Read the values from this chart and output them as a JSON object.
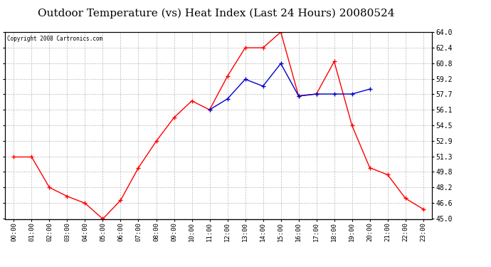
{
  "title": "Outdoor Temperature (vs) Heat Index (Last 24 Hours) 20080524",
  "copyright": "Copyright 2008 Cartronics.com",
  "hours": [
    "00:00",
    "01:00",
    "02:00",
    "03:00",
    "04:00",
    "05:00",
    "06:00",
    "07:00",
    "08:00",
    "09:00",
    "10:00",
    "11:00",
    "12:00",
    "13:00",
    "14:00",
    "15:00",
    "16:00",
    "17:00",
    "18:00",
    "19:00",
    "20:00",
    "21:00",
    "22:00",
    "23:00"
  ],
  "temp": [
    51.3,
    51.3,
    48.2,
    47.3,
    46.6,
    45.0,
    46.9,
    50.2,
    52.9,
    55.3,
    57.0,
    56.1,
    59.5,
    62.4,
    62.4,
    64.0,
    57.5,
    57.7,
    61.0,
    54.5,
    50.2,
    49.5,
    47.1,
    46.0
  ],
  "heat_index": [
    null,
    null,
    null,
    null,
    null,
    null,
    null,
    null,
    null,
    null,
    null,
    56.1,
    57.2,
    59.2,
    58.5,
    60.8,
    57.5,
    57.7,
    57.7,
    57.7,
    58.2,
    null,
    null,
    null
  ],
  "temp_color": "#ff0000",
  "heat_color": "#0000cc",
  "ylim_min": 45.0,
  "ylim_max": 64.0,
  "yticks": [
    45.0,
    46.6,
    48.2,
    49.8,
    51.3,
    52.9,
    54.5,
    56.1,
    57.7,
    59.2,
    60.8,
    62.4,
    64.0
  ],
  "bg_color": "#ffffff",
  "plot_bg": "#ffffff",
  "grid_color": "#bbbbbb",
  "title_fontsize": 11,
  "marker": "+",
  "markersize": 5,
  "linewidth": 1.0
}
